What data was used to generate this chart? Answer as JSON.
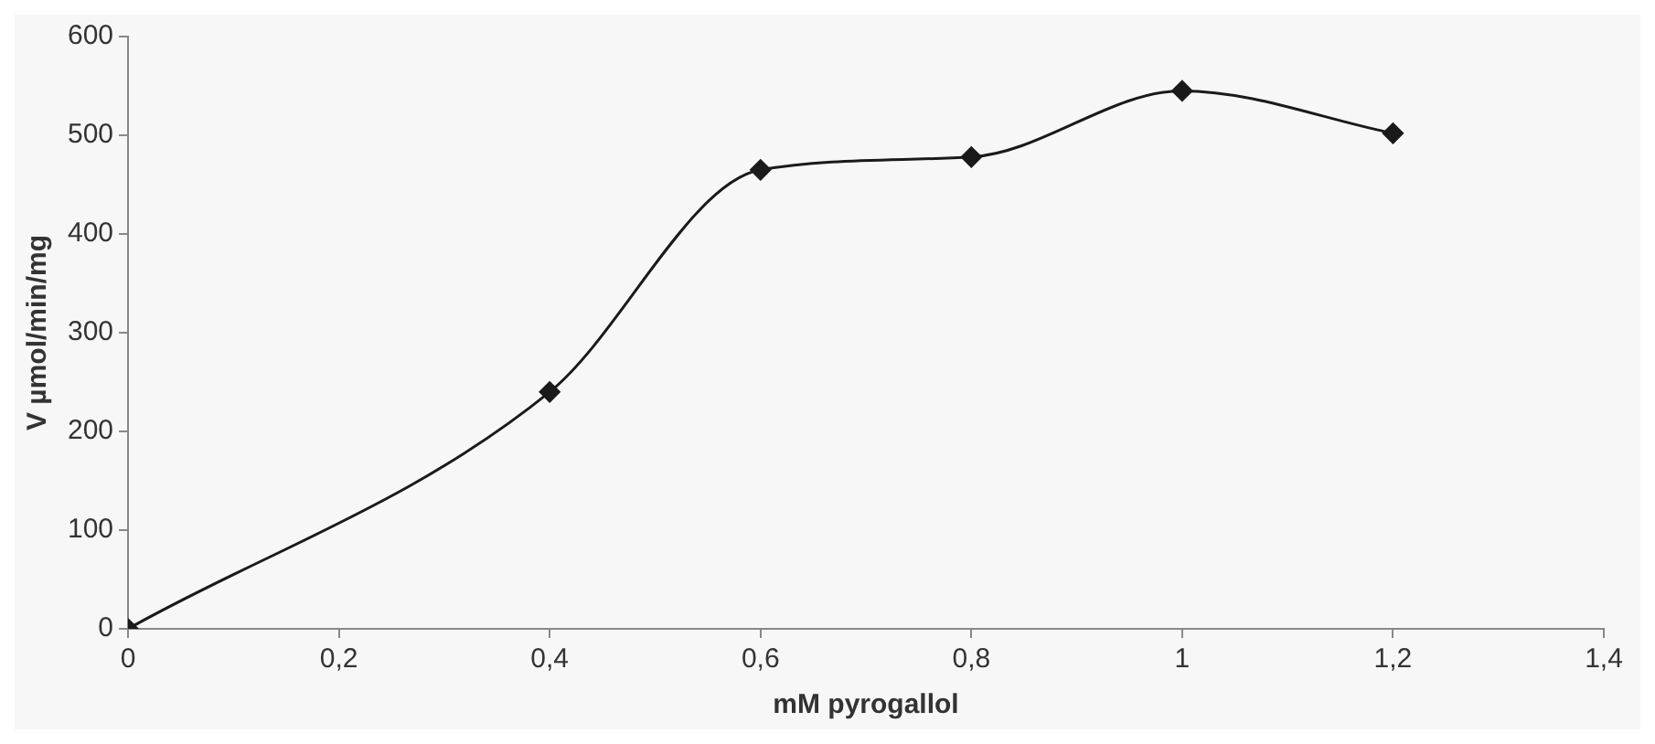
{
  "chart_data": {
    "type": "line",
    "xlabel": "mM pyrogallol",
    "ylabel": "V µmol/min/mg",
    "x": [
      0,
      0.4,
      0.6,
      0.8,
      1,
      1.2
    ],
    "series": [
      {
        "color": "#1a1a1a",
        "values": [
          0,
          240,
          465,
          478,
          545,
          502
        ]
      }
    ],
    "xlim": [
      0,
      1.4
    ],
    "xticks": [
      0,
      {
        "value": 0.2,
        "label": "0,2"
      },
      {
        "value": 0.4,
        "label": "0,4"
      },
      {
        "value": 0.6,
        "label": "0,6"
      },
      {
        "value": 0.8,
        "label": "0,8"
      },
      1,
      {
        "value": 1.2,
        "label": "1,2"
      },
      {
        "value": 1.4,
        "label": "1,4"
      }
    ],
    "ylim": [
      0,
      600
    ],
    "yticks": [
      0,
      100,
      200,
      300,
      400,
      500,
      600
    ],
    "grid": false,
    "legend": false,
    "marker": "diamond",
    "line_style": "solid"
  }
}
